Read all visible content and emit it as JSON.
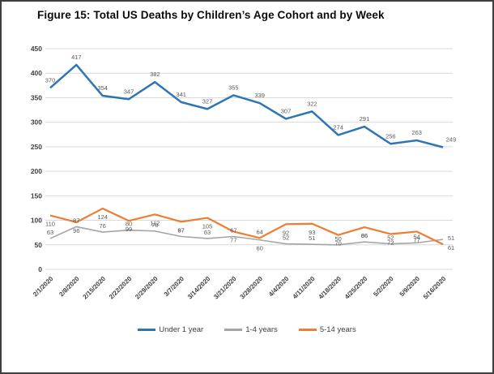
{
  "figure": {
    "title": "Figure 15: Total US Deaths by Children’s Age Cohort and by Week"
  },
  "chart_data": {
    "type": "line",
    "title": "Figure 15: Total US Deaths by Children’s Age Cohort and by Week",
    "categories": [
      "2/1/2020",
      "2/8/2020",
      "2/15/2020",
      "2/22/2020",
      "2/29/2020",
      "3/7/2020",
      "3/14/2020",
      "3/21/2020",
      "3/28/2020",
      "4/4/2020",
      "4/11/2020",
      "4/18/2020",
      "4/25/2020",
      "5/2/2020",
      "5/9/2020",
      "5/16/2020"
    ],
    "series": [
      {
        "name": "Under 1 year",
        "color": "#2E75B6",
        "values": [
          370,
          417,
          354,
          347,
          382,
          341,
          327,
          355,
          339,
          307,
          322,
          274,
          291,
          256,
          263,
          249
        ]
      },
      {
        "name": "1-4 years",
        "color": "#A5A5A5",
        "values": [
          63,
          87,
          76,
          80,
          78,
          67,
          63,
          67,
          60,
          52,
          51,
          50,
          56,
          52,
          54,
          61
        ]
      },
      {
        "name": "5-14 years",
        "color": "#ED7D31",
        "values": [
          110,
          96,
          124,
          99,
          112,
          97,
          105,
          77,
          64,
          92,
          93,
          70,
          86,
          72,
          77,
          51
        ]
      }
    ],
    "xlabel": "",
    "ylabel": "",
    "ylim": [
      0,
      450
    ],
    "y_ticks": [
      450,
      400,
      350,
      300,
      250,
      200,
      150,
      100,
      50,
      0
    ],
    "grid": true,
    "legend_position": "bottom",
    "gridline_color": "#D9D9D9",
    "tick_label_color": "#404040",
    "data_label_color": "#595959"
  }
}
